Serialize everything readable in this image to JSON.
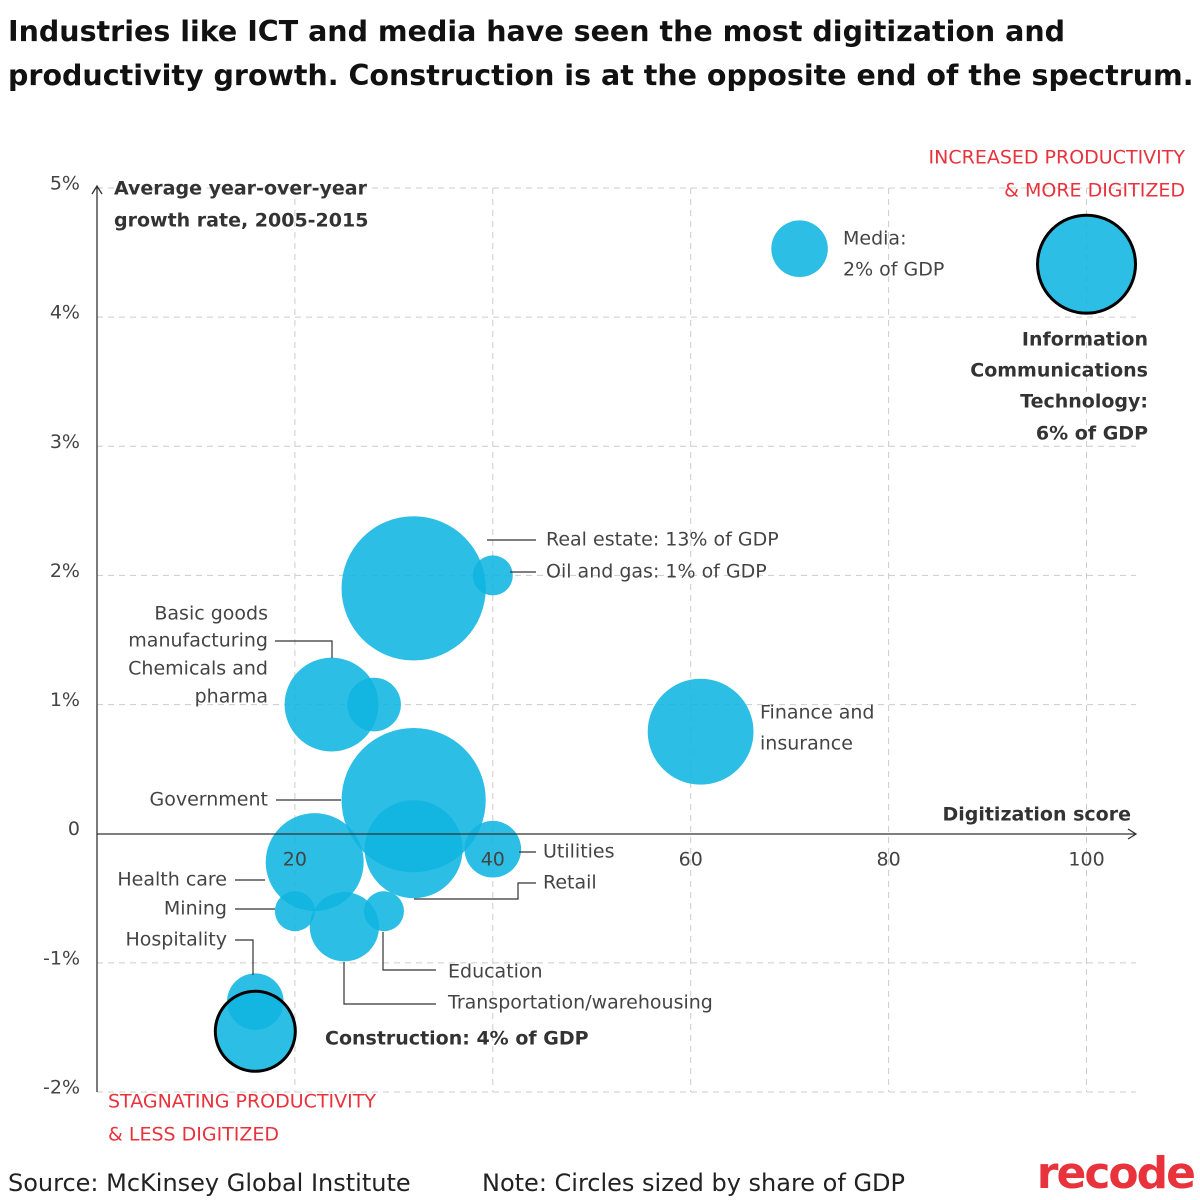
{
  "chart_data": {
    "type": "bubble",
    "title": "Industries like ICT and media have seen the most digitization and productivity growth. Construction is at the opposite end of the spectrum.",
    "x_label": "Digitization score",
    "y_label": [
      "Average year-over-year",
      "growth rate, 2005-2015"
    ],
    "annotations": {
      "top_right": [
        "INCREASED PRODUCTIVITY",
        "& MORE DIGITIZED"
      ],
      "bottom_left": [
        "STAGNATING PRODUCTIVITY",
        "& LESS DIGITIZED"
      ]
    },
    "source": "Source: McKinsey Global Institute",
    "note": "Note: Circles sized by share of GDP",
    "brand": "recode",
    "color": "#0fb5e0",
    "outline_color": "#000000",
    "annotation_color": "#e8323c",
    "grid": true,
    "xlim": [
      0,
      105
    ],
    "ylim": [
      -2,
      5
    ],
    "xticks": [
      20,
      40,
      60,
      80,
      100
    ],
    "yticks": [
      {
        "value": -2,
        "label": "-2%"
      },
      {
        "value": -1,
        "label": "-1%"
      },
      0,
      {
        "value": 1,
        "label": "1%"
      },
      {
        "value": 2,
        "label": "2%"
      },
      {
        "value": 3,
        "label": "3%"
      },
      {
        "value": 4,
        "label": "4%"
      },
      {
        "value": 5,
        "label": "5%"
      }
    ],
    "points": [
      {
        "label": [
          "Information",
          "Communications",
          "Technology:",
          "6% of GDP"
        ],
        "x": 100,
        "y": 4.41,
        "size": 6,
        "outlined": true
      },
      {
        "label": [
          "Media:",
          "2% of GDP"
        ],
        "x": 71,
        "y": 4.53,
        "size": 2,
        "outlined": false
      },
      {
        "label": [
          "Real estate: 13% of GDP"
        ],
        "x": 32,
        "y": 1.9,
        "size": 13,
        "outlined": false
      },
      {
        "label": [
          "Oil and gas: 1% of GDP"
        ],
        "x": 40,
        "y": 2.0,
        "size": 1,
        "outlined": false
      },
      {
        "label": [
          "Basic goods",
          "manufacturing"
        ],
        "x": 23.7,
        "y": 1.0,
        "size": 5.5,
        "outlined": false
      },
      {
        "label": [
          "Chemicals and",
          "pharma"
        ],
        "x": 28,
        "y": 1.0,
        "size": 1.8,
        "outlined": false
      },
      {
        "label": [
          "Finance and",
          "insurance"
        ],
        "x": 61,
        "y": 0.79,
        "size": 7,
        "outlined": false
      },
      {
        "label": [
          "Government"
        ],
        "x": 32,
        "y": 0.26,
        "size": 13,
        "outlined": false
      },
      {
        "label": [
          "Retail"
        ],
        "x": 32,
        "y": -0.12,
        "size": 6,
        "outlined": false
      },
      {
        "label": [
          "Utilities"
        ],
        "x": 40,
        "y": -0.12,
        "size": 2,
        "outlined": false
      },
      {
        "label": [
          "Health care"
        ],
        "x": 22,
        "y": -0.22,
        "size": 6,
        "outlined": false
      },
      {
        "label": [
          "Mining"
        ],
        "x": 20,
        "y": -0.6,
        "size": 1,
        "outlined": false
      },
      {
        "label": [
          "Education"
        ],
        "x": 29,
        "y": -0.6,
        "size": 1,
        "outlined": false
      },
      {
        "label": [
          "Transportation/warehousing"
        ],
        "x": 25,
        "y": -0.72,
        "size": 3,
        "outlined": false
      },
      {
        "label": [
          "Hospitality"
        ],
        "x": 16,
        "y": -1.3,
        "size": 2,
        "outlined": false
      },
      {
        "label": [
          "Construction: 4% of GDP"
        ],
        "x": 16,
        "y": -1.53,
        "size": 4,
        "outlined": true
      }
    ]
  }
}
